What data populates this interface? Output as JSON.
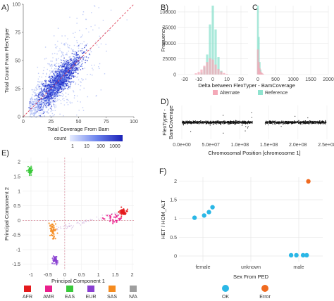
{
  "colors": {
    "accent": "#2b3fd6",
    "alternate": "#f4a9b8",
    "reference": "#8fe3cf",
    "ok": "#2ab7e6",
    "error": "#f06a1f",
    "afr": "#e41a1c",
    "amr": "#ea1f8c",
    "eas": "#39c93a",
    "eur": "#8a3fd1",
    "sas": "#f58b1f",
    "na": "#9e9e9e"
  },
  "chart_data": [
    {
      "panel": "A)",
      "type": "heatmap",
      "xlabel": "Total Coverage From Bam",
      "ylabel": "Total Count From FlexTyper",
      "x_ticks": [
        "0",
        "25",
        "50",
        "75",
        "100"
      ],
      "y_ticks": [
        "0",
        "25",
        "50",
        "75",
        "100"
      ],
      "xlim": [
        0,
        100
      ],
      "ylim": [
        0,
        100
      ],
      "legend_title": "count",
      "legend_ticks": [
        "1",
        "10",
        "100",
        "1000"
      ],
      "identity_line": true
    },
    {
      "panel": "B)",
      "type": "bar",
      "xlabel": "",
      "ylabel": "Frequency",
      "x_ticks": [
        "-20",
        "-10",
        "0",
        "10",
        "20"
      ],
      "y_ticks": [
        "0",
        "25000",
        "50000",
        "75000",
        "100000"
      ],
      "xlim": [
        -25,
        25
      ],
      "ylim": [
        0,
        110000
      ],
      "series": [
        {
          "name": "Reference",
          "x": [
            -8,
            -6,
            -4,
            -2,
            0,
            2,
            4,
            6
          ],
          "values": [
            3000,
            12000,
            32000,
            80000,
            110000,
            72000,
            28000,
            6000
          ]
        },
        {
          "name": "Alternate",
          "x": [
            -12,
            -10,
            -8,
            -6,
            -4,
            -2,
            0,
            2,
            4,
            6,
            8,
            10
          ],
          "values": [
            2000,
            4000,
            8000,
            14000,
            20000,
            26000,
            24000,
            16000,
            9000,
            5000,
            2500,
            1000
          ]
        }
      ]
    },
    {
      "panel": "C)",
      "type": "bar",
      "x_ticks": [
        "0",
        "500",
        "1000",
        "1500",
        "2000"
      ],
      "xlim": [
        0,
        2000
      ],
      "ylim": [
        0,
        110000
      ],
      "series": [
        {
          "name": "Reference",
          "x": [
            0,
            25,
            50,
            75,
            100
          ],
          "values": [
            110000,
            60000,
            20000,
            8000,
            3000
          ]
        },
        {
          "name": "Alternate",
          "x": [
            0,
            25,
            50,
            75,
            100,
            125,
            150
          ],
          "values": [
            40000,
            20000,
            10000,
            5000,
            3000,
            2000,
            1000
          ]
        }
      ]
    },
    {
      "panel": "D)",
      "type": "scatter",
      "xlabel": "Chromosomal Position [chromosome 1]",
      "ylabel": "FlexTyper - BamCoverage",
      "x_ticks": [
        "0.0e+00",
        "5.0e+07",
        "1.0e+08",
        "1.5e+08",
        "2.0e+08",
        "2.5e+08"
      ],
      "xlim": [
        0,
        250000000
      ],
      "ylim": [
        -40,
        40
      ]
    },
    {
      "panel": "E)",
      "type": "scatter",
      "xlabel": "Principal Component 1",
      "ylabel": "Principal Component 2",
      "x_ticks": [
        "-1",
        "-0.5",
        "0",
        "0.5",
        "1",
        "1.5",
        "2"
      ],
      "y_ticks": [
        "-1.5",
        "-1",
        "-0.5",
        "0",
        "0.5",
        "1",
        "1.5",
        "2"
      ],
      "xlim": [
        -1.25,
        2.05
      ],
      "ylim": [
        -1.7,
        2.15
      ],
      "legend": [
        "AFR",
        "AMR",
        "EAS",
        "EUR",
        "SAS",
        "N/A"
      ],
      "clusters": [
        {
          "name": "EAS",
          "cx": -1.02,
          "cy": 1.7,
          "sx": 0.04,
          "sy": 0.07,
          "n": 50
        },
        {
          "name": "AFR",
          "cx": 1.72,
          "cy": 0.28,
          "sx": 0.06,
          "sy": 0.06,
          "n": 70
        },
        {
          "name": "SAS",
          "cx": -0.35,
          "cy": -0.35,
          "sx": 0.05,
          "sy": 0.16,
          "n": 55
        },
        {
          "name": "EUR",
          "cx": -0.28,
          "cy": -1.35,
          "sx": 0.04,
          "sy": 0.08,
          "n": 45
        },
        {
          "name": "AMR",
          "cx": 1.45,
          "cy": 0.05,
          "sx": 0.15,
          "sy": 0.08,
          "n": 35
        }
      ]
    },
    {
      "panel": "F)",
      "type": "scatter",
      "xlabel": "Sex From PED",
      "ylabel": "HET / HOM_ALT",
      "categories": [
        "female",
        "unknown",
        "male"
      ],
      "y_ticks": [
        "0",
        "0.5",
        "1",
        "1.5",
        "2"
      ],
      "ylim": [
        -0.15,
        2.1
      ],
      "legend": [
        "OK",
        "Error"
      ],
      "points": [
        {
          "cat": "female",
          "offset": -0.35,
          "y": 1.02,
          "status": "OK"
        },
        {
          "cat": "female",
          "offset": 0.05,
          "y": 1.08,
          "status": "OK"
        },
        {
          "cat": "female",
          "offset": 0.25,
          "y": 1.17,
          "status": "OK"
        },
        {
          "cat": "female",
          "offset": 0.4,
          "y": 1.3,
          "status": "OK"
        },
        {
          "cat": "male",
          "offset": -0.32,
          "y": 0.02,
          "status": "OK"
        },
        {
          "cat": "male",
          "offset": -0.1,
          "y": 0.02,
          "status": "OK"
        },
        {
          "cat": "male",
          "offset": 0.18,
          "y": 0.02,
          "status": "OK"
        },
        {
          "cat": "male",
          "offset": 0.33,
          "y": 0.02,
          "status": "OK"
        },
        {
          "cat": "male",
          "offset": 0.4,
          "y": 1.99,
          "status": "Error"
        }
      ]
    }
  ]
}
